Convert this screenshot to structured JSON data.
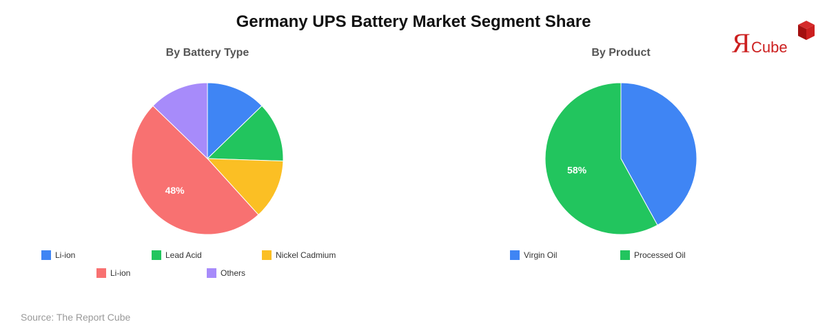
{
  "header": {
    "title": "Germany UPS Battery Market Segment Share"
  },
  "logo": {
    "letter": "Я",
    "text": "Cube",
    "red": "#cc1f1f",
    "cube_dark": "#a30f0f",
    "cube_light": "#d42a2a"
  },
  "chart_data": [
    {
      "type": "pie",
      "title": "By Battery Type",
      "categories": [
        "Li-ion",
        "Lead Acid",
        "Nickel Cadmium",
        "Li-ion",
        "Others"
      ],
      "values": [
        12.5,
        12.5,
        12.5,
        48,
        12.5
      ],
      "colors": [
        "#3f85f4",
        "#22c55e",
        "#fbbf24",
        "#f87171",
        "#a78bfa"
      ],
      "data_labels": [
        "",
        "",
        "",
        "48%",
        ""
      ],
      "legend_position": "bottom"
    },
    {
      "type": "pie",
      "title": "By Product",
      "categories": [
        "Virgin Oil",
        "Processed Oil"
      ],
      "values": [
        42,
        58
      ],
      "colors": [
        "#3f85f4",
        "#22c55e"
      ],
      "data_labels": [
        "",
        "58%"
      ],
      "legend_position": "bottom"
    }
  ],
  "footer": {
    "source": "Source: The Report Cube"
  }
}
